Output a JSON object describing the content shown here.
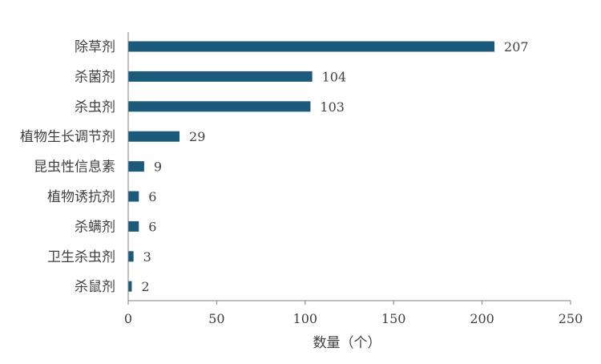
{
  "chart_data": {
    "type": "bar",
    "orientation": "horizontal",
    "categories": [
      "除草剂",
      "杀菌剂",
      "杀虫剂",
      "植物生长调节剂",
      "昆虫性信息素",
      "植物诱抗剂",
      "杀螨剂",
      "卫生杀虫剂",
      "杀鼠剂"
    ],
    "values": [
      207,
      104,
      103,
      29,
      9,
      6,
      6,
      3,
      2
    ],
    "title": "",
    "xlabel": "数量（个）",
    "ylabel": "",
    "xlim": [
      0,
      250
    ],
    "x_ticks": [
      0,
      50,
      100,
      150,
      200,
      250
    ],
    "grid": false,
    "data_labels": true,
    "bar_color": "#1b5a7a"
  }
}
